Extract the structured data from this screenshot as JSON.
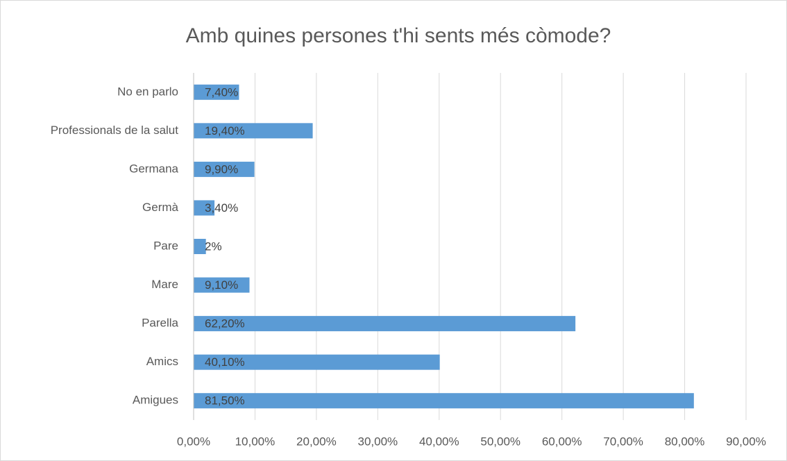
{
  "chart_data": {
    "type": "bar",
    "orientation": "horizontal",
    "title": "Amb quines persones t'hi sents més còmode?",
    "categories": [
      "No en parlo",
      "Professionals de la salut",
      "Germana",
      "Germà",
      "Pare",
      "Mare",
      "Parella",
      "Amics",
      "Amigues"
    ],
    "values": [
      7.4,
      19.4,
      9.9,
      3.4,
      2,
      9.1,
      62.2,
      40.1,
      81.5
    ],
    "value_labels": [
      "7,40%",
      "19,40%",
      "9,90%",
      "3,40%",
      "2%",
      "9,10%",
      "62,20%",
      "40,10%",
      "81,50%"
    ],
    "color": "#5b9bd5",
    "xlim": [
      0,
      90
    ],
    "xticks": [
      {
        "value": 0,
        "label": "0,00%"
      },
      {
        "value": 10,
        "label": "10,00%"
      },
      {
        "value": 20,
        "label": "20,00%"
      },
      {
        "value": 30,
        "label": "30,00%"
      },
      {
        "value": 40,
        "label": "40,00%"
      },
      {
        "value": 50,
        "label": "50,00%"
      },
      {
        "value": 60,
        "label": "60,00%"
      },
      {
        "value": 70,
        "label": "70,00%"
      },
      {
        "value": 80,
        "label": "80,00%"
      },
      {
        "value": 90,
        "label": "90,00%"
      }
    ],
    "grid": true
  }
}
